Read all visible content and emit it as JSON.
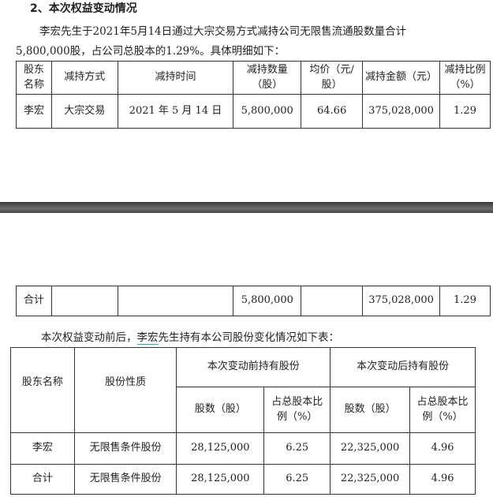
{
  "heading": "2、本次权益变动情况",
  "para1_line1": "李宏先生于2021年5月14日通过大宗交易方式减持公司无限售流通股数量合计",
  "para1_line2": "5,800,000股，占公司总股本的1.29%。具体明细如下：",
  "table1": {
    "headers": [
      "股东名称",
      "减持方式",
      "减持时间",
      "减持数量（股）",
      "均价（元/股）",
      "减持金额（元）",
      "减持比例（%）"
    ],
    "row": [
      "李宏",
      "大宗交易",
      "2021 年 5 月 14 日",
      "5,800,000",
      "64.66",
      "375,028,000",
      "1.29"
    ],
    "total": [
      "合计",
      "",
      "",
      "5,800,000",
      "",
      "375,028,000",
      "1.29"
    ]
  },
  "para2_prefix": "本次权益变动前后，",
  "para2_name": "李宏",
  "para2_suffix": "先生持有本公司股份变化情况如下表：",
  "table2": {
    "h_name": "股东名称",
    "h_type": "股份性质",
    "h_before": "本次变动前持有股份",
    "h_after": "本次变动后持有股份",
    "h_shares": "股数（股）",
    "h_ratio": "占总股本比例（%）",
    "rows": [
      [
        "李宏",
        "无限售条件股份",
        "28,125,000",
        "6.25",
        "22,325,000",
        "4.96"
      ],
      [
        "合计",
        "无限售条件股份",
        "28,125,000",
        "6.25",
        "22,325,000",
        "4.96"
      ]
    ]
  }
}
